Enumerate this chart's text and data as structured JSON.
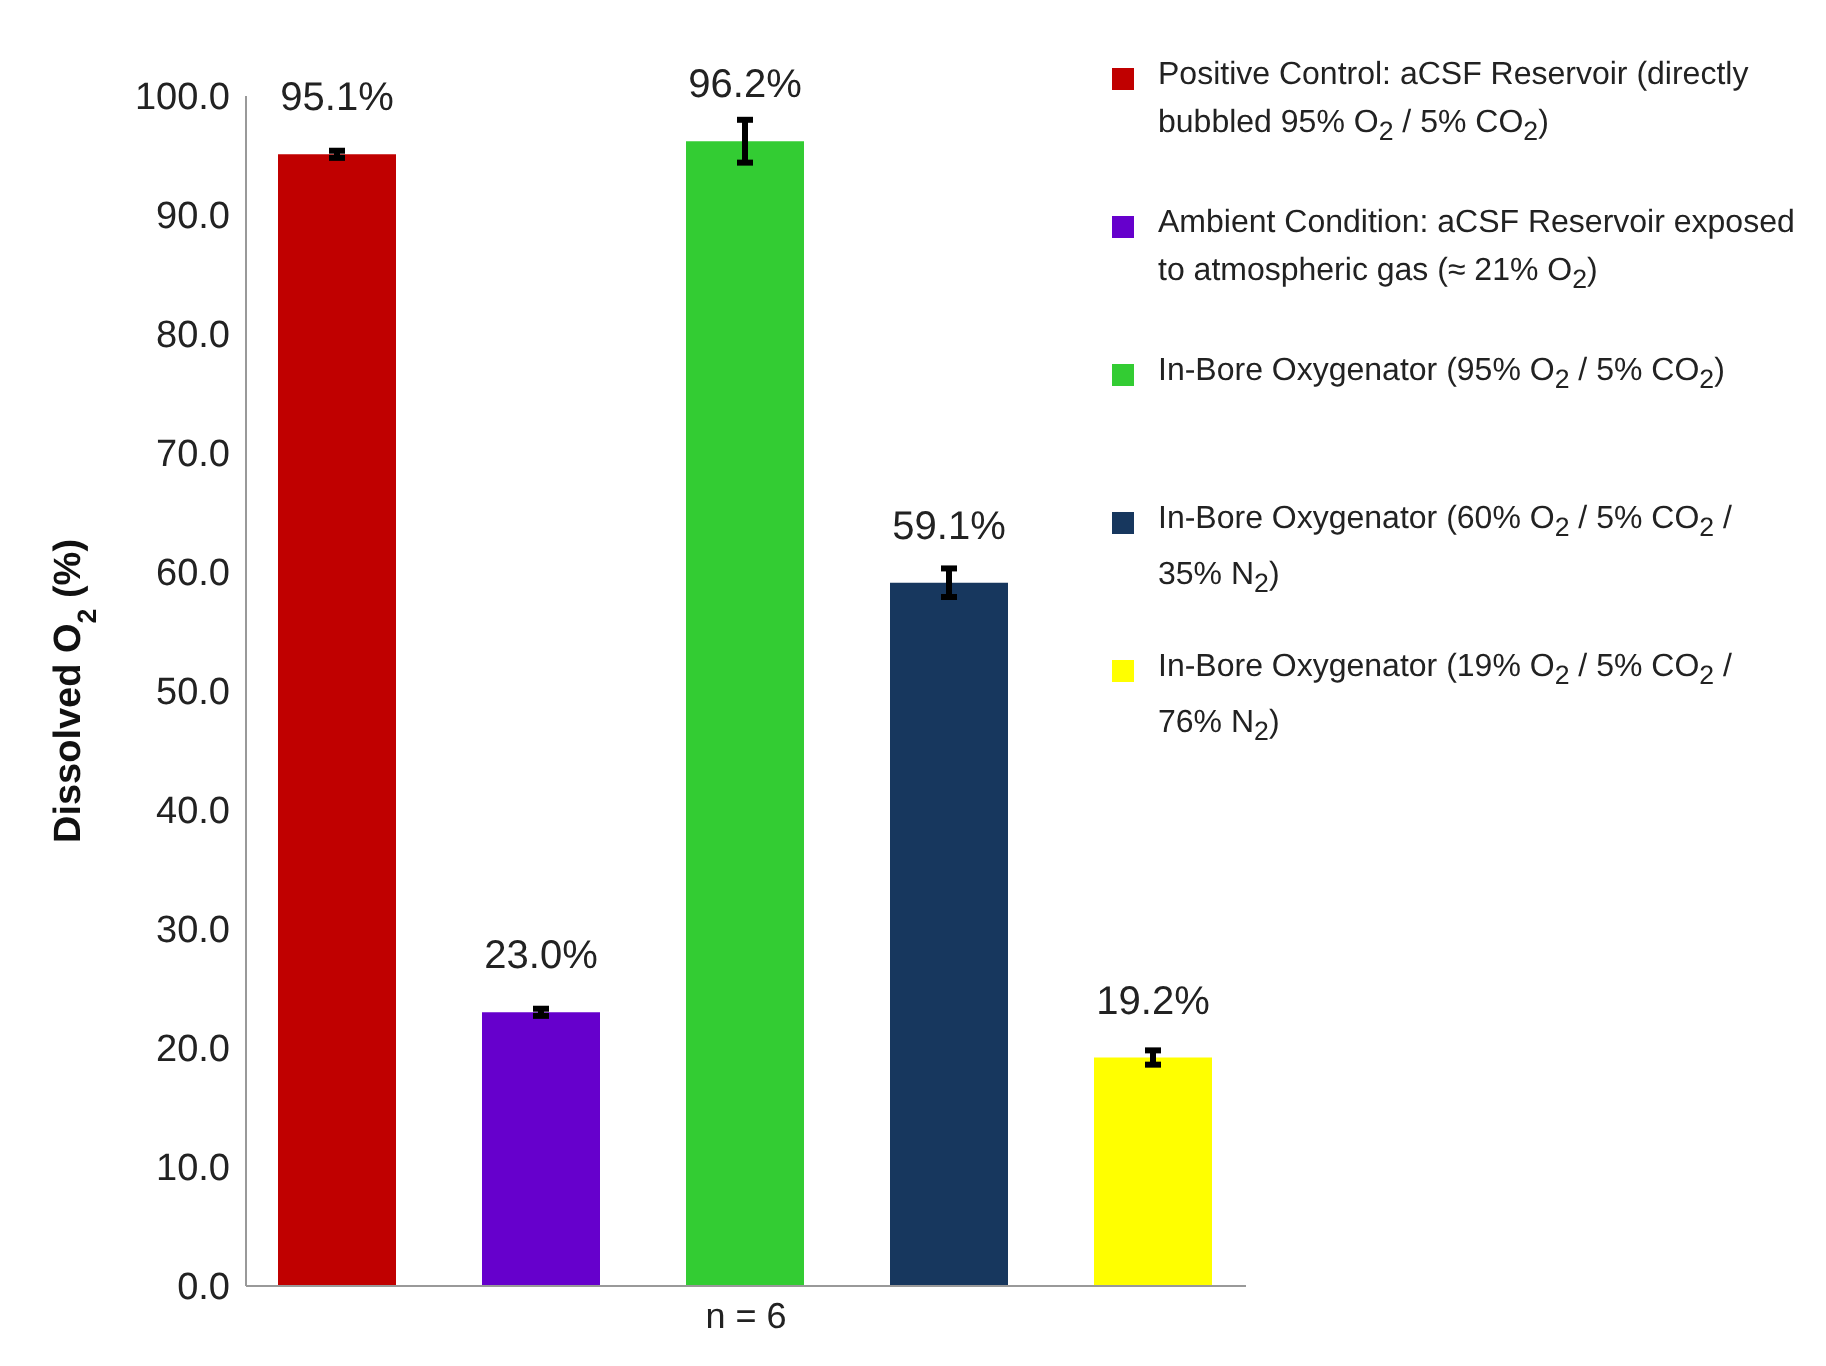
{
  "chart_data": {
    "type": "bar",
    "ylabel": "Dissolved O$_{2}$ (%)",
    "categories": [
      "n = 6"
    ],
    "series": [
      {
        "name": "Positive Control: aCSF Reservoir (directly bubbled 95% O$_{2}$ / 5% CO$_{2}$)",
        "color": "#c00000",
        "values": [
          95.1
        ],
        "errors": [
          0.3
        ],
        "value_labels": [
          "95.1%"
        ]
      },
      {
        "name": "Ambient Condition: aCSF Reservoir exposed to atmospheric gas (≈ 21% O$_{2}$)",
        "color": "#6600cc",
        "values": [
          23.0
        ],
        "errors": [
          0.3
        ],
        "value_labels": [
          "23.0%"
        ]
      },
      {
        "name": "In-Bore Oxygenator (95% O$_{2}$ / 5% CO$_{2}$)",
        "color": "#33cc33",
        "values": [
          96.2
        ],
        "errors": [
          1.8
        ],
        "value_labels": [
          "96.2%"
        ]
      },
      {
        "name": "In-Bore Oxygenator (60% O$_{2}$ / 5% CO$_{2}$ / 35% N$_{2}$)",
        "color": "#17375e",
        "values": [
          59.1
        ],
        "errors": [
          1.2
        ],
        "value_labels": [
          "59.1%"
        ]
      },
      {
        "name": "In-Bore Oxygenator (19% O$_{2}$ / 5% CO$_{2}$ / 76% N$_{2}$)",
        "color": "#ffff00",
        "values": [
          19.2
        ],
        "errors": [
          0.6
        ],
        "value_labels": [
          "19.2%"
        ]
      }
    ],
    "ylim": [
      0,
      100
    ],
    "yticks": [
      {
        "value": 0,
        "label": "0.0"
      },
      {
        "value": 10,
        "label": "10.0"
      },
      {
        "value": 20,
        "label": "20.0"
      },
      {
        "value": 30,
        "label": "30.0"
      },
      {
        "value": 40,
        "label": "40.0"
      },
      {
        "value": 50,
        "label": "50.0"
      },
      {
        "value": 60,
        "label": "60.0"
      },
      {
        "value": 70,
        "label": "70.0"
      },
      {
        "value": 80,
        "label": "80.0"
      },
      {
        "value": 90,
        "label": "90.0"
      },
      {
        "value": 100,
        "label": "100.0"
      }
    ],
    "grid": false,
    "legend": "right"
  }
}
